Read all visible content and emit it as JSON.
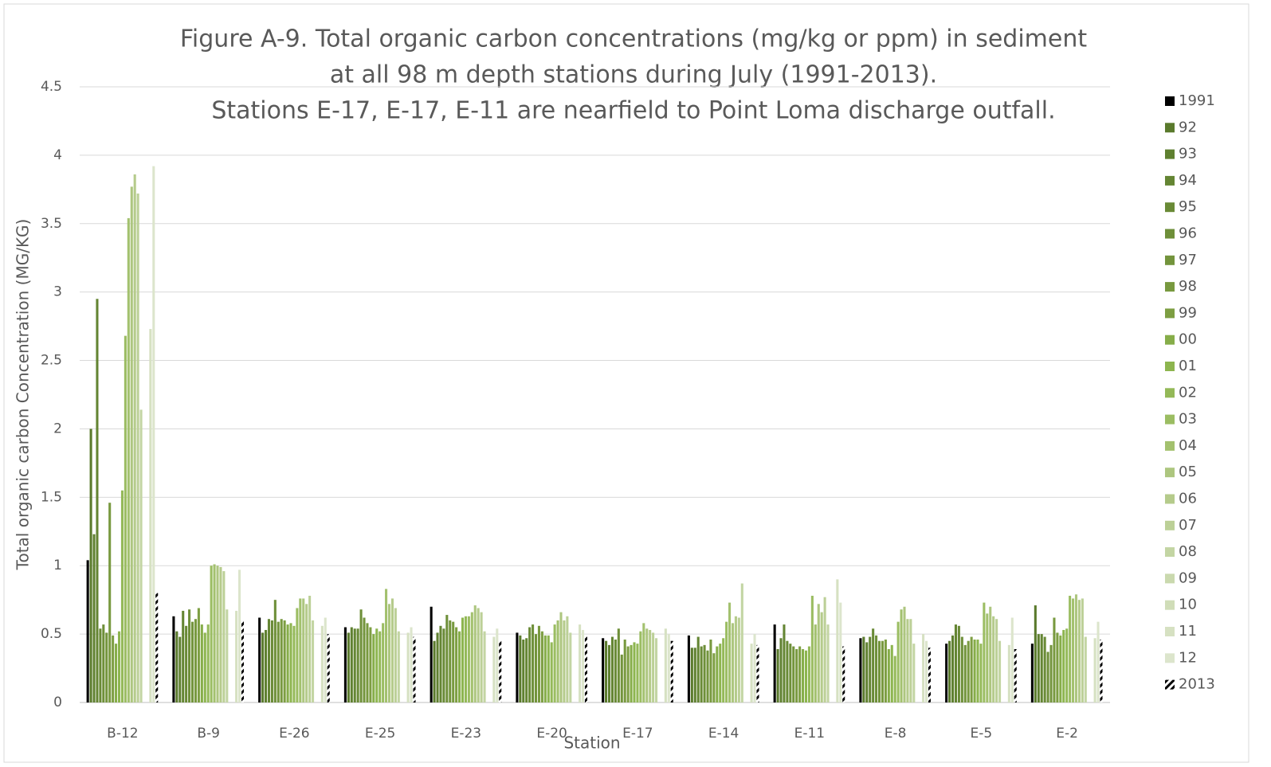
{
  "chart_data": {
    "type": "bar",
    "title": [
      "Figure A-9.  Total organic carbon concentrations (mg/kg or ppm) in sediment",
      "at all 98 m depth stations during July (1991-2013).",
      "Stations E-17, E-17, E-11 are nearfield to Point Loma discharge outfall."
    ],
    "x_label": "Station",
    "y_label": "Total organic carbon Concentration (MG/KG)",
    "categories": [
      "B-12",
      "B-9",
      "E-26",
      "E-25",
      "E-23",
      "E-20",
      "E-17",
      "E-14",
      "E-11",
      "E-8",
      "E-5",
      "E-2"
    ],
    "ylim": [
      0,
      4.5
    ],
    "yticks": [
      0,
      0.5,
      1,
      1.5,
      2,
      2.5,
      3,
      3.5,
      4,
      4.5
    ],
    "grid": true,
    "legend": "right",
    "series": [
      {
        "name": "1991",
        "color": "#000000",
        "values": [
          1.04,
          0.63,
          0.62,
          0.55,
          0.7,
          0.51,
          0.47,
          0.49,
          0.57,
          0.47,
          0.43,
          0.43
        ]
      },
      {
        "name": "92",
        "color": "#5a7a2c",
        "values": [
          2.0,
          0.52,
          0.51,
          0.51,
          0.45,
          0.49,
          0.45,
          0.4,
          0.39,
          0.48,
          0.45,
          0.71
        ]
      },
      {
        "name": "93",
        "color": "#5f8030",
        "values": [
          1.23,
          0.48,
          0.53,
          0.55,
          0.51,
          0.46,
          0.42,
          0.4,
          0.47,
          0.44,
          0.49,
          0.5
        ]
      },
      {
        "name": "94",
        "color": "#648533",
        "values": [
          2.95,
          0.67,
          0.61,
          0.54,
          0.56,
          0.47,
          0.48,
          0.48,
          0.57,
          0.48,
          0.57,
          0.5
        ]
      },
      {
        "name": "95",
        "color": "#698a36",
        "values": [
          0.54,
          0.56,
          0.6,
          0.54,
          0.54,
          0.55,
          0.46,
          0.41,
          0.45,
          0.54,
          0.56,
          0.48
        ]
      },
      {
        "name": "96",
        "color": "#6e8f39",
        "values": [
          0.57,
          0.68,
          0.75,
          0.68,
          0.64,
          0.57,
          0.54,
          0.42,
          0.43,
          0.49,
          0.48,
          0.37
        ]
      },
      {
        "name": "97",
        "color": "#73943c",
        "values": [
          0.51,
          0.59,
          0.59,
          0.62,
          0.6,
          0.5,
          0.35,
          0.38,
          0.41,
          0.45,
          0.42,
          0.42
        ]
      },
      {
        "name": "98",
        "color": "#78993f",
        "values": [
          1.46,
          0.61,
          0.61,
          0.58,
          0.59,
          0.56,
          0.46,
          0.46,
          0.39,
          0.45,
          0.45,
          0.62
        ]
      },
      {
        "name": "99",
        "color": "#7d9e42",
        "values": [
          0.49,
          0.69,
          0.6,
          0.55,
          0.55,
          0.52,
          0.41,
          0.36,
          0.41,
          0.46,
          0.48,
          0.51
        ]
      },
      {
        "name": "00",
        "color": "#86ad49",
        "values": [
          0.43,
          0.57,
          0.57,
          0.5,
          0.52,
          0.49,
          0.42,
          0.41,
          0.39,
          0.39,
          0.46,
          0.49
        ]
      },
      {
        "name": "01",
        "color": "#8db54f",
        "values": [
          0.52,
          0.51,
          0.58,
          0.54,
          0.62,
          0.49,
          0.44,
          0.43,
          0.38,
          0.42,
          0.46,
          0.53
        ]
      },
      {
        "name": "02",
        "color": "#94b958",
        "values": [
          1.55,
          0.57,
          0.56,
          0.52,
          0.63,
          0.44,
          0.43,
          0.47,
          0.41,
          0.34,
          0.43,
          0.54
        ]
      },
      {
        "name": "03",
        "color": "#9bbd62",
        "values": [
          2.68,
          1.0,
          0.69,
          0.58,
          0.63,
          0.57,
          0.52,
          0.59,
          0.78,
          0.59,
          0.73,
          0.78
        ]
      },
      {
        "name": "04",
        "color": "#a3c16e",
        "values": [
          3.54,
          1.01,
          0.76,
          0.83,
          0.66,
          0.6,
          0.58,
          0.73,
          0.57,
          0.68,
          0.65,
          0.76
        ]
      },
      {
        "name": "05",
        "color": "#adc67f",
        "values": [
          3.77,
          1.0,
          0.76,
          0.72,
          0.71,
          0.66,
          0.54,
          0.58,
          0.72,
          0.7,
          0.7,
          0.79
        ]
      },
      {
        "name": "06",
        "color": "#b5cb8b",
        "values": [
          3.86,
          0.99,
          0.72,
          0.76,
          0.69,
          0.6,
          0.53,
          0.63,
          0.66,
          0.61,
          0.63,
          0.75
        ]
      },
      {
        "name": "07",
        "color": "#bcd097",
        "values": [
          3.72,
          0.96,
          0.78,
          0.69,
          0.66,
          0.63,
          0.51,
          0.62,
          0.77,
          0.61,
          0.61,
          0.76
        ]
      },
      {
        "name": "08",
        "color": "#c3d5a3",
        "values": [
          2.14,
          0.68,
          0.6,
          0.52,
          0.52,
          0.51,
          0.47,
          0.87,
          0.57,
          0.43,
          0.45,
          0.48
        ]
      },
      {
        "name": "09",
        "color": "#cad9ae",
        "values": [
          null,
          null,
          null,
          null,
          null,
          null,
          null,
          null,
          null,
          null,
          null,
          null
        ]
      },
      {
        "name": "10",
        "color": "#d0ddb8",
        "values": [
          null,
          null,
          null,
          null,
          null,
          null,
          null,
          null,
          null,
          null,
          null,
          null
        ]
      },
      {
        "name": "11",
        "color": "#d6e1c2",
        "values": [
          2.73,
          0.67,
          0.56,
          0.51,
          0.48,
          0.57,
          0.54,
          0.43,
          0.9,
          0.5,
          0.42,
          0.47
        ]
      },
      {
        "name": "12",
        "color": "#dce5cc",
        "values": [
          3.92,
          0.97,
          0.62,
          0.55,
          0.54,
          0.53,
          0.5,
          0.5,
          0.73,
          0.45,
          0.62,
          0.59
        ]
      },
      {
        "name": "2013",
        "color": "#000000",
        "pattern": "hatch",
        "values": [
          0.8,
          0.6,
          0.5,
          0.48,
          0.45,
          0.48,
          0.45,
          0.42,
          0.41,
          0.4,
          0.39,
          0.46
        ]
      }
    ]
  }
}
